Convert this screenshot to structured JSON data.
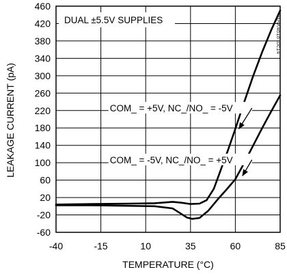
{
  "chart_data": {
    "type": "line",
    "title": "",
    "xlabel": "TEMPERATURE (°C)",
    "ylabel": "LEAKAGE CURRENT (pA)",
    "xlim": [
      -40,
      85
    ],
    "ylim": [
      -60,
      460
    ],
    "x_ticks": [
      -40,
      -15,
      10,
      35,
      60,
      85
    ],
    "y_ticks": [
      -60,
      -20,
      20,
      60,
      100,
      140,
      180,
      220,
      260,
      300,
      340,
      380,
      420,
      460
    ],
    "grid": true,
    "legend_box": "DUAL ±5.5V SUPPLIES",
    "watermark": "MAX4818 toc14",
    "series": [
      {
        "name": "COM_ = +5V, NC_/NO_ = -5V",
        "x": [
          -40,
          -20,
          0,
          15,
          25,
          30,
          35,
          40,
          44,
          48,
          52,
          56,
          60,
          65,
          70,
          75,
          80,
          85
        ],
        "y": [
          4,
          5,
          6,
          7,
          10,
          8,
          5,
          6,
          14,
          40,
          85,
          130,
          178,
          240,
          300,
          355,
          405,
          450
        ]
      },
      {
        "name": "COM_ = -5V, NC_/NO_ = +5V",
        "x": [
          -40,
          -20,
          0,
          15,
          25,
          30,
          33,
          36,
          40,
          45,
          50,
          55,
          60,
          65,
          70,
          75,
          80,
          85
        ],
        "y": [
          2,
          2,
          1,
          0,
          -5,
          -18,
          -26,
          -29,
          -27,
          -10,
          15,
          38,
          62,
          100,
          140,
          180,
          218,
          255
        ]
      }
    ],
    "annotations": [
      {
        "text": "COM_ = +5V, NC_/NO_ = -5V",
        "x": -10,
        "y": 221,
        "arrow_to": [
          62,
          178
        ]
      },
      {
        "text": "COM_ = -5V, NC_/NO_ = +5V",
        "x": -10,
        "y": 102,
        "arrow_to": [
          64,
          70
        ]
      }
    ]
  }
}
